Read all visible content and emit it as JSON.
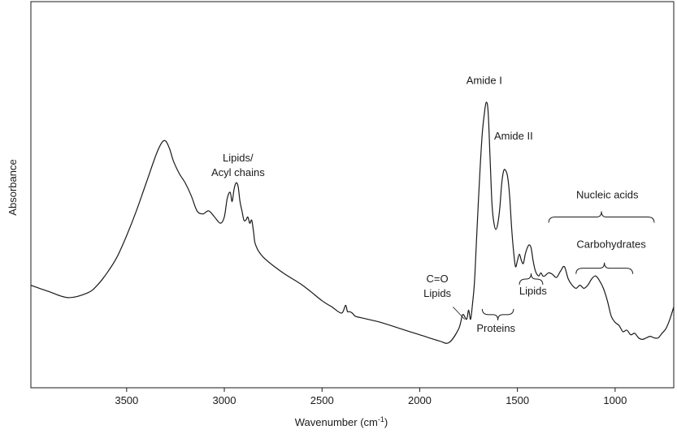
{
  "chart_data": {
    "type": "line",
    "title": "",
    "xlabel": "Wavenumber (cm",
    "xlabel_sup": "-1",
    "xlabel_close": ")",
    "ylabel": "Absorbance",
    "x_reversed": true,
    "xlim": [
      3990,
      700
    ],
    "ylim": [
      0,
      1
    ],
    "xticks": [
      {
        "value": 3500,
        "label": "3500"
      },
      {
        "value": 3000,
        "label": "3000"
      },
      {
        "value": 2500,
        "label": "2500"
      },
      {
        "value": 2000,
        "label": "2000"
      },
      {
        "value": 1500,
        "label": "1500"
      },
      {
        "value": 1000,
        "label": "1000"
      }
    ],
    "grid": false,
    "legend": "none",
    "line_color": "#1a1a1a",
    "series": [
      {
        "x": [
          3990,
          3900,
          3800,
          3700,
          3650,
          3600,
          3550,
          3500,
          3450,
          3400,
          3350,
          3320,
          3300,
          3280,
          3260,
          3230,
          3200,
          3170,
          3140,
          3110,
          3080,
          3050,
          3020,
          3000,
          2985,
          2970,
          2960,
          2950,
          2940,
          2930,
          2920,
          2910,
          2900,
          2890,
          2880,
          2870,
          2860,
          2850,
          2840,
          2800,
          2700,
          2600,
          2500,
          2450,
          2400,
          2380,
          2370,
          2360,
          2345,
          2330,
          2300,
          2200,
          2100,
          2000,
          1900,
          1850,
          1800,
          1780,
          1760,
          1750,
          1740,
          1730,
          1720,
          1710,
          1700,
          1690,
          1680,
          1670,
          1660,
          1650,
          1640,
          1630,
          1620,
          1610,
          1600,
          1590,
          1580,
          1570,
          1560,
          1550,
          1540,
          1530,
          1520,
          1510,
          1500,
          1490,
          1480,
          1470,
          1460,
          1450,
          1440,
          1430,
          1420,
          1410,
          1400,
          1390,
          1380,
          1370,
          1360,
          1340,
          1320,
          1300,
          1280,
          1260,
          1240,
          1220,
          1200,
          1180,
          1160,
          1140,
          1120,
          1100,
          1080,
          1060,
          1040,
          1020,
          1000,
          980,
          960,
          940,
          920,
          900,
          880,
          860,
          840,
          820,
          800,
          780,
          760,
          740,
          720,
          700
        ],
        "y": [
          0.31,
          0.29,
          0.27,
          0.285,
          0.31,
          0.35,
          0.4,
          0.47,
          0.55,
          0.64,
          0.73,
          0.77,
          0.775,
          0.75,
          0.71,
          0.67,
          0.64,
          0.6,
          0.55,
          0.54,
          0.55,
          0.53,
          0.51,
          0.53,
          0.59,
          0.61,
          0.58,
          0.62,
          0.64,
          0.63,
          0.58,
          0.55,
          0.52,
          0.52,
          0.53,
          0.51,
          0.52,
          0.48,
          0.44,
          0.4,
          0.35,
          0.31,
          0.26,
          0.24,
          0.22,
          0.245,
          0.225,
          0.225,
          0.22,
          0.21,
          0.205,
          0.19,
          0.17,
          0.15,
          0.13,
          0.125,
          0.17,
          0.215,
          0.2,
          0.23,
          0.2,
          0.25,
          0.32,
          0.45,
          0.58,
          0.7,
          0.8,
          0.86,
          0.9,
          0.87,
          0.72,
          0.57,
          0.51,
          0.49,
          0.51,
          0.56,
          0.64,
          0.68,
          0.68,
          0.66,
          0.6,
          0.5,
          0.42,
          0.37,
          0.39,
          0.41,
          0.39,
          0.38,
          0.41,
          0.43,
          0.44,
          0.43,
          0.39,
          0.36,
          0.345,
          0.34,
          0.35,
          0.34,
          0.34,
          0.35,
          0.345,
          0.335,
          0.355,
          0.37,
          0.33,
          0.31,
          0.3,
          0.31,
          0.3,
          0.31,
          0.33,
          0.34,
          0.325,
          0.3,
          0.26,
          0.21,
          0.19,
          0.18,
          0.16,
          0.165,
          0.15,
          0.155,
          0.14,
          0.135,
          0.14,
          0.145,
          0.14,
          0.14,
          0.155,
          0.17,
          0.2,
          0.24
        ]
      }
    ],
    "annotations": [
      {
        "id": "lipids-acyl",
        "lines": [
          "Lipids/",
          "Acyl chains"
        ],
        "x": 2930,
        "y": 0.71
      },
      {
        "id": "amide-1",
        "lines": [
          "Amide I"
        ],
        "x": 1670,
        "y": 0.96
      },
      {
        "id": "amide-2",
        "lines": [
          "Amide II"
        ],
        "x": 1520,
        "y": 0.78
      },
      {
        "id": "nucleic-acids",
        "lines": [
          "Nucleic acids"
        ],
        "x": 1040,
        "y": 0.59
      },
      {
        "id": "carbohydrates",
        "lines": [
          "Carbohydrates"
        ],
        "x": 1020,
        "y": 0.43
      },
      {
        "id": "co-lipids",
        "lines": [
          "C=O",
          "Lipids"
        ],
        "x": 1910,
        "y": 0.32
      },
      {
        "id": "lipids-mid",
        "lines": [
          "Lipids"
        ],
        "x": 1420,
        "y": 0.28
      },
      {
        "id": "proteins",
        "lines": [
          "Proteins"
        ],
        "x": 1610,
        "y": 0.16
      }
    ],
    "braces": [
      {
        "id": "nucleic-acids",
        "x1": 1340,
        "x2": 800,
        "y": 0.53,
        "dir": "down"
      },
      {
        "id": "carbohydrates",
        "x1": 1200,
        "x2": 910,
        "y": 0.365,
        "dir": "down"
      },
      {
        "id": "lipids",
        "x1": 1490,
        "x2": 1370,
        "y": 0.33,
        "dir": "down"
      },
      {
        "id": "proteins",
        "x1": 1680,
        "x2": 1520,
        "y": 0.215,
        "dir": "up"
      }
    ],
    "leader": {
      "x1": 1830,
      "y1": 0.24,
      "x2": 1770,
      "y2": 0.2
    }
  }
}
